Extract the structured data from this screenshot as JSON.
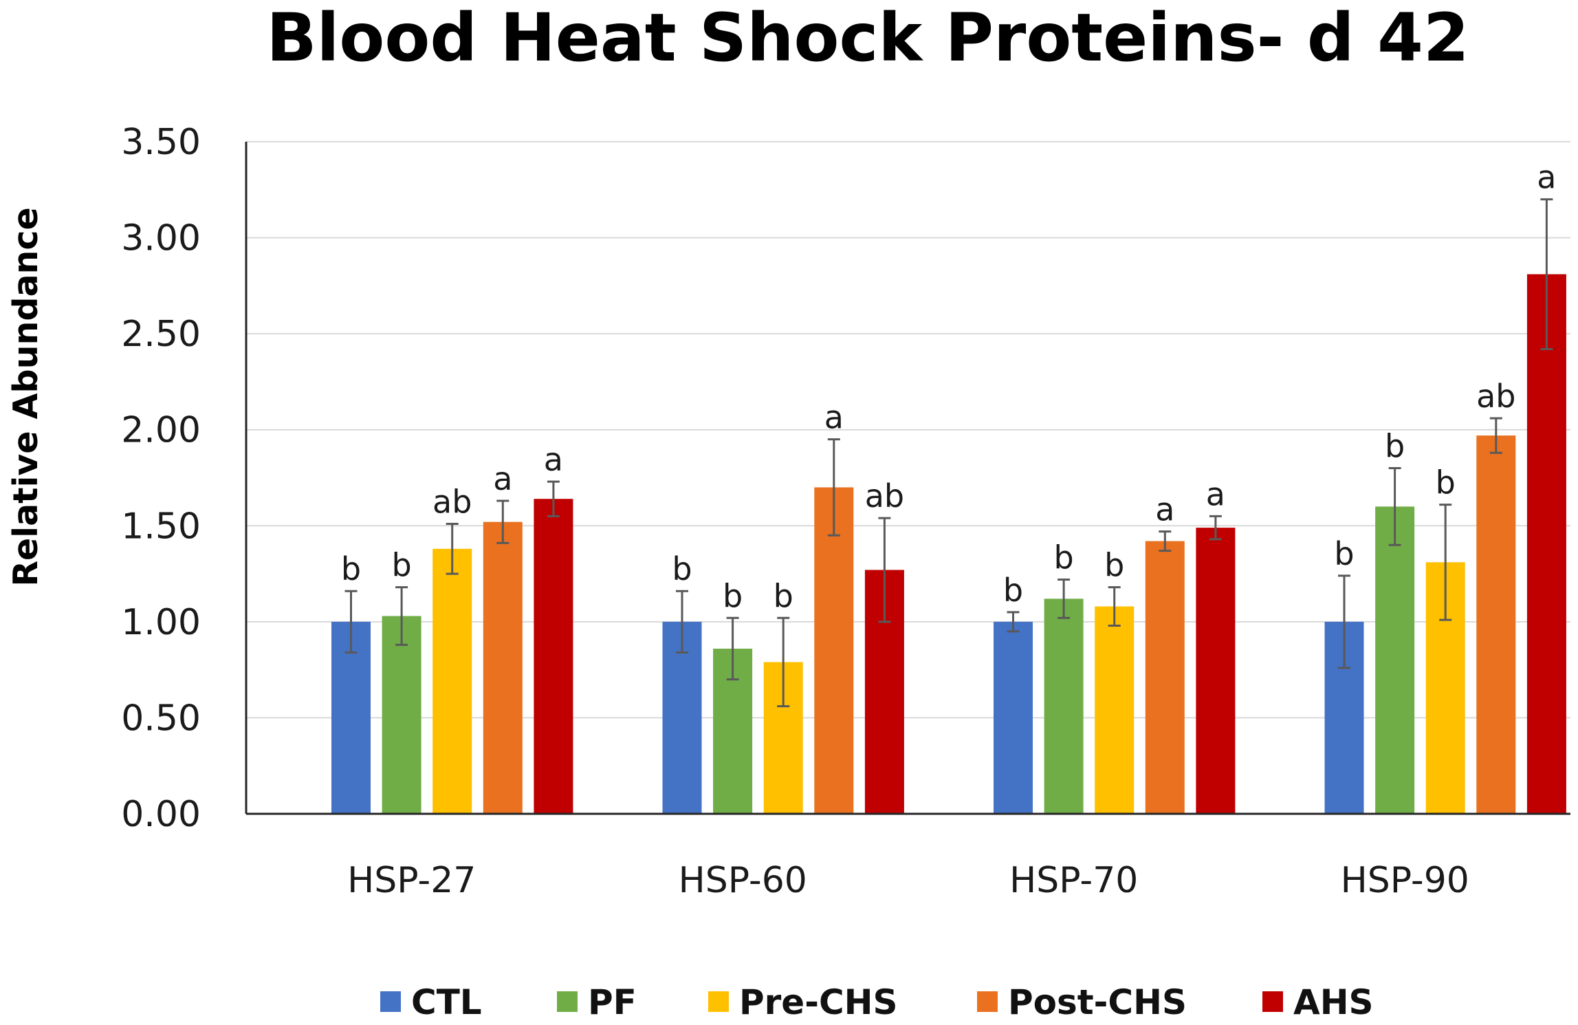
{
  "chart_data": {
    "type": "bar",
    "title": "Blood Heat Shock Proteins- d 42",
    "xlabel": "",
    "ylabel": "Relative Abundance",
    "ylim": [
      0,
      3.5
    ],
    "yticks": [
      0.0,
      0.5,
      1.0,
      1.5,
      2.0,
      2.5,
      3.0,
      3.5
    ],
    "ytick_labels": [
      "0.00",
      "0.50",
      "1.00",
      "1.50",
      "2.00",
      "2.50",
      "3.00",
      "3.50"
    ],
    "grid": "horizontal",
    "legend_position": "bottom",
    "categories": [
      "HSP-27",
      "HSP-60",
      "HSP-70",
      "HSP-90"
    ],
    "series": [
      {
        "name": "CTL",
        "color": "#4472C4",
        "values": [
          1.0,
          1.0,
          1.0,
          1.0
        ],
        "errors": [
          0.16,
          0.16,
          0.05,
          0.24
        ],
        "labels": [
          "b",
          "b",
          "b",
          "b"
        ]
      },
      {
        "name": "PF",
        "color": "#70AD47",
        "values": [
          1.03,
          0.86,
          1.12,
          1.6
        ],
        "errors": [
          0.15,
          0.16,
          0.1,
          0.2
        ],
        "labels": [
          "b",
          "b",
          "b",
          "b"
        ]
      },
      {
        "name": "Pre-CHS",
        "color": "#FFC000",
        "values": [
          1.38,
          0.79,
          1.08,
          1.31
        ],
        "errors": [
          0.13,
          0.23,
          0.1,
          0.3
        ],
        "labels": [
          "ab",
          "b",
          "b",
          "b"
        ]
      },
      {
        "name": "Post-CHS",
        "color": "#E97120",
        "values": [
          1.52,
          1.7,
          1.42,
          1.97
        ],
        "errors": [
          0.11,
          0.25,
          0.05,
          0.09
        ],
        "labels": [
          "a",
          "a",
          "a",
          "ab"
        ]
      },
      {
        "name": "AHS",
        "color": "#C00000",
        "values": [
          1.64,
          1.27,
          1.49,
          2.81
        ],
        "errors": [
          0.09,
          0.27,
          0.06,
          0.39
        ],
        "labels": [
          "a",
          "ab",
          "a",
          "a"
        ]
      }
    ]
  }
}
